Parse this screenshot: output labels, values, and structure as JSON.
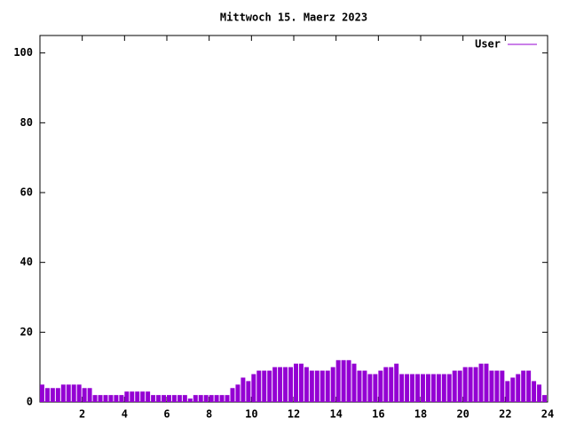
{
  "chart_data": {
    "type": "impulse",
    "title": "Mittwoch 15. Maerz 2023",
    "series": [
      {
        "name": "User",
        "color": "#9400d3",
        "x": [
          0,
          0.25,
          0.5,
          0.75,
          1,
          1.25,
          1.5,
          1.75,
          2,
          2.25,
          2.5,
          2.75,
          3,
          3.25,
          3.5,
          3.75,
          4,
          4.25,
          4.5,
          4.75,
          5,
          5.25,
          5.5,
          5.75,
          6,
          6.25,
          6.5,
          6.75,
          7,
          7.25,
          7.5,
          7.75,
          8,
          8.25,
          8.5,
          8.75,
          9,
          9.25,
          9.5,
          9.75,
          10,
          10.25,
          10.5,
          10.75,
          11,
          11.25,
          11.5,
          11.75,
          12,
          12.25,
          12.5,
          12.75,
          13,
          13.25,
          13.5,
          13.75,
          14,
          14.25,
          14.5,
          14.75,
          15,
          15.25,
          15.5,
          15.75,
          16,
          16.25,
          16.5,
          16.75,
          17,
          17.25,
          17.5,
          17.75,
          18,
          18.25,
          18.5,
          18.75,
          19,
          19.25,
          19.5,
          19.75,
          20,
          20.25,
          20.5,
          20.75,
          21,
          21.25,
          21.5,
          21.75,
          22,
          22.25,
          22.5,
          22.75,
          23,
          23.25,
          23.5,
          23.75
        ],
        "values": [
          5,
          4,
          4,
          4,
          5,
          5,
          5,
          5,
          4,
          4,
          2,
          2,
          2,
          2,
          2,
          2,
          3,
          3,
          3,
          3,
          3,
          2,
          2,
          2,
          2,
          2,
          2,
          2,
          1,
          2,
          2,
          2,
          2,
          2,
          2,
          2,
          4,
          5,
          7,
          6,
          8,
          9,
          9,
          9,
          10,
          10,
          10,
          10,
          11,
          11,
          10,
          9,
          9,
          9,
          9,
          10,
          12,
          12,
          12,
          11,
          9,
          9,
          8,
          8,
          9,
          10,
          10,
          11,
          8,
          8,
          8,
          8,
          8,
          8,
          8,
          8,
          8,
          8,
          9,
          9,
          10,
          10,
          10,
          11,
          11,
          9,
          9,
          9,
          6,
          7,
          8,
          9,
          9,
          6,
          5,
          2
        ]
      }
    ],
    "xlim": [
      0,
      24
    ],
    "xticks": [
      2,
      4,
      6,
      8,
      10,
      12,
      14,
      16,
      18,
      20,
      22,
      24
    ],
    "ylim": [
      0,
      105
    ],
    "yticks": [
      0,
      20,
      40,
      60,
      80,
      100
    ],
    "legend": "top-right"
  }
}
